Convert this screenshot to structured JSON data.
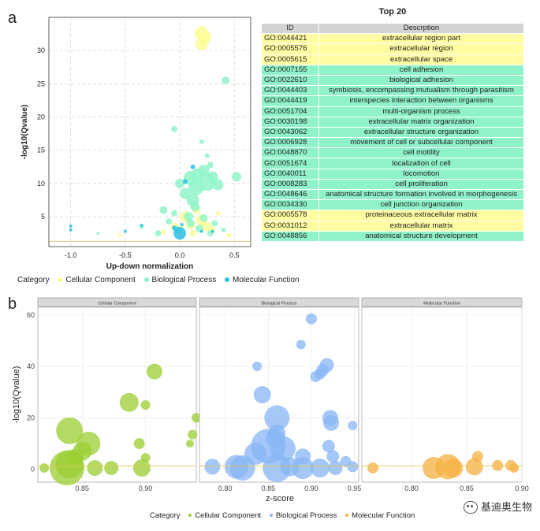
{
  "panel_a_label": "a",
  "panel_b_label": "b",
  "watermark_text": "基迪奥生物",
  "colors": {
    "cellular_component_a": "#fdfd96",
    "biological_process_a": "#90f5c9",
    "molecular_function_a": "#2cc0e8",
    "cellular_component_b": "#9acd32",
    "biological_process_b": "#87b5f5",
    "molecular_function_b": "#f5b041",
    "table_cc_row": "#fffca2",
    "table_bp_row": "#8ff2c8"
  },
  "table": {
    "title": "Top 20",
    "headers": [
      "ID",
      "Descrption"
    ],
    "rows": [
      {
        "id": "GO:0044421",
        "desc": "extracellular region part",
        "cat": "cc"
      },
      {
        "id": "GO:0005576",
        "desc": "extracellular region",
        "cat": "cc"
      },
      {
        "id": "GO:0005615",
        "desc": "extracellular space",
        "cat": "cc"
      },
      {
        "id": "GO:0007155",
        "desc": "cell adhesion",
        "cat": "bp"
      },
      {
        "id": "GO:0022610",
        "desc": "biological adhesion",
        "cat": "bp"
      },
      {
        "id": "GO:0044403",
        "desc": "symbiosis, encompassing mutualism through parasitism",
        "cat": "bp"
      },
      {
        "id": "GO:0044419",
        "desc": "interspecies interaction between organisms",
        "cat": "bp"
      },
      {
        "id": "GO:0051704",
        "desc": "multi-organism process",
        "cat": "bp"
      },
      {
        "id": "GO:0030198",
        "desc": "extracellular matrix organization",
        "cat": "bp"
      },
      {
        "id": "GO:0043062",
        "desc": "extracellular structure organization",
        "cat": "bp"
      },
      {
        "id": "GO:0006928",
        "desc": "movement of cell or subcellular component",
        "cat": "bp"
      },
      {
        "id": "GO:0048870",
        "desc": "cell motility",
        "cat": "bp"
      },
      {
        "id": "GO:0051674",
        "desc": "localization of cell",
        "cat": "bp"
      },
      {
        "id": "GO:0040011",
        "desc": "locomotion",
        "cat": "bp"
      },
      {
        "id": "GO:0008283",
        "desc": "cell proliferation",
        "cat": "bp"
      },
      {
        "id": "GO:0048646",
        "desc": "anatomical structure formation involved in morphogenesis",
        "cat": "bp"
      },
      {
        "id": "GO:0034330",
        "desc": "cell junction organization",
        "cat": "bp"
      },
      {
        "id": "GO:0005578",
        "desc": "proteinaceous extracellular matrix",
        "cat": "cc"
      },
      {
        "id": "GO:0031012",
        "desc": "extracellular matrix",
        "cat": "cc"
      },
      {
        "id": "GO:0048856",
        "desc": "anatomical structure development",
        "cat": "bp"
      }
    ]
  },
  "legend_a": {
    "title": "Category",
    "items": [
      {
        "label": "Cellular Component",
        "color_key": "cellular_component_a"
      },
      {
        "label": "Biological Process",
        "color_key": "biological_process_a"
      },
      {
        "label": "Molecular Function",
        "color_key": "molecular_function_a"
      }
    ]
  },
  "legend_b": {
    "title": "Category",
    "items": [
      {
        "label": "Cellular Component",
        "color_key": "cellular_component_b"
      },
      {
        "label": "Biological Process",
        "color_key": "biological_process_b"
      },
      {
        "label": "Molecular Function",
        "color_key": "molecular_function_b"
      }
    ]
  },
  "chart_data": [
    {
      "type": "scatter",
      "panel": "a",
      "xlabel": "Up-down normalization",
      "ylabel": "-log10(Qvalue)",
      "xlim": [
        -1.2,
        0.65
      ],
      "ylim": [
        0.5,
        35
      ],
      "xticks": [
        -1.0,
        -0.5,
        0.0,
        0.5
      ],
      "xtick_labels": [
        "-1.0",
        "-0.5",
        "0.0",
        "0.5"
      ],
      "yticks": [
        5,
        10,
        15,
        20,
        25,
        30
      ],
      "ytick_labels": [
        "5",
        "10",
        "15",
        "20",
        "25",
        "30"
      ],
      "hline": 1.3,
      "grid": true,
      "series": [
        {
          "name": "Cellular Component",
          "color_key": "cellular_component_a",
          "points": [
            {
              "x": 0.2,
              "y": 32.6,
              "s": 9
            },
            {
              "x": 0.23,
              "y": 32.0,
              "s": 8
            },
            {
              "x": 0.2,
              "y": 31.0,
              "s": 8
            },
            {
              "x": 0.15,
              "y": 6.0,
              "s": 5
            },
            {
              "x": 0.05,
              "y": 5.0,
              "s": 7
            },
            {
              "x": 0.2,
              "y": 4.5,
              "s": 7
            },
            {
              "x": 0.1,
              "y": 3.8,
              "s": 6
            },
            {
              "x": 0.25,
              "y": 3.5,
              "s": 6
            },
            {
              "x": -0.05,
              "y": 3.5,
              "s": 5
            },
            {
              "x": 0.0,
              "y": 3.0,
              "s": 6
            },
            {
              "x": 0.3,
              "y": 3.0,
              "s": 4
            },
            {
              "x": -0.15,
              "y": 2.7,
              "s": 3
            },
            {
              "x": 0.12,
              "y": 2.5,
              "s": 4
            },
            {
              "x": 0.45,
              "y": 2.2,
              "s": 3
            },
            {
              "x": -0.55,
              "y": 2.3,
              "s": 2
            },
            {
              "x": 0.35,
              "y": 5.5,
              "s": 3
            }
          ]
        },
        {
          "name": "Biological Process",
          "color_key": "biological_process_a",
          "points": [
            {
              "x": 0.42,
              "y": 25.5,
              "s": 5
            },
            {
              "x": -0.05,
              "y": 18.2,
              "s": 4
            },
            {
              "x": 0.2,
              "y": 16.3,
              "s": 3
            },
            {
              "x": 0.25,
              "y": 14.2,
              "s": 3
            },
            {
              "x": 0.28,
              "y": 12.8,
              "s": 4
            },
            {
              "x": 0.22,
              "y": 12.0,
              "s": 7
            },
            {
              "x": 0.16,
              "y": 11.3,
              "s": 8
            },
            {
              "x": 0.3,
              "y": 11.0,
              "s": 7
            },
            {
              "x": 0.52,
              "y": 11.0,
              "s": 6
            },
            {
              "x": 0.1,
              "y": 10.8,
              "s": 9
            },
            {
              "x": 0.25,
              "y": 10.2,
              "s": 11
            },
            {
              "x": 0.0,
              "y": 10.0,
              "s": 6
            },
            {
              "x": 0.35,
              "y": 9.8,
              "s": 7
            },
            {
              "x": 0.15,
              "y": 9.4,
              "s": 10
            },
            {
              "x": 0.05,
              "y": 8.5,
              "s": 7
            },
            {
              "x": 0.12,
              "y": 7.5,
              "s": 8
            },
            {
              "x": 0.14,
              "y": 6.5,
              "s": 6
            },
            {
              "x": -0.15,
              "y": 6.0,
              "s": 5
            },
            {
              "x": -0.05,
              "y": 5.5,
              "s": 4
            },
            {
              "x": 0.08,
              "y": 5.0,
              "s": 6
            },
            {
              "x": 0.22,
              "y": 4.8,
              "s": 5
            },
            {
              "x": -0.1,
              "y": 4.3,
              "s": 4
            },
            {
              "x": 0.1,
              "y": 4.0,
              "s": 5
            },
            {
              "x": 0.32,
              "y": 4.0,
              "s": 4
            },
            {
              "x": -0.02,
              "y": 3.0,
              "s": 5
            },
            {
              "x": 0.18,
              "y": 3.2,
              "s": 5
            },
            {
              "x": -0.2,
              "y": 2.5,
              "s": 4
            },
            {
              "x": 0.28,
              "y": 2.5,
              "s": 4
            },
            {
              "x": -0.35,
              "y": 3.5,
              "s": 3
            },
            {
              "x": -0.75,
              "y": 2.5,
              "s": 2
            },
            {
              "x": 0.4,
              "y": 3.0,
              "s": 3
            }
          ]
        },
        {
          "name": "Molecular Function",
          "color_key": "molecular_function_a",
          "points": [
            {
              "x": 0.12,
              "y": 12.5,
              "s": 3
            },
            {
              "x": 0.05,
              "y": 10.3,
              "s": 3
            },
            {
              "x": 0.0,
              "y": 2.5,
              "s": 8
            },
            {
              "x": -0.05,
              "y": 3.3,
              "s": 3
            },
            {
              "x": 0.02,
              "y": 3.8,
              "s": 2
            },
            {
              "x": -0.35,
              "y": 3.7,
              "s": 2
            },
            {
              "x": -1.0,
              "y": 3.6,
              "s": 2
            },
            {
              "x": -1.0,
              "y": 3.0,
              "s": 2
            },
            {
              "x": -0.5,
              "y": 2.8,
              "s": 2
            },
            {
              "x": 0.3,
              "y": 2.8,
              "s": 2
            },
            {
              "x": 0.2,
              "y": 2.8,
              "s": 2
            }
          ]
        }
      ]
    },
    {
      "type": "scatter",
      "panel": "b",
      "facets": [
        "Cellular Component",
        "Biological Process",
        "Molecular Function"
      ],
      "xlabel": "z-score",
      "ylabel": "-log10(Qvalue)",
      "ylim": [
        -5,
        63
      ],
      "yticks": [
        0,
        20,
        40,
        60
      ],
      "ytick_labels": [
        "0",
        "20",
        "40",
        "60"
      ],
      "hline": 1.3,
      "grid": true,
      "facet_data": [
        {
          "name": "Cellular Component",
          "color_key": "cellular_component_b",
          "xlim": [
            0.815,
            0.94
          ],
          "xticks": [
            0.85,
            0.9
          ],
          "xtick_labels": [
            "0.85",
            "0.90"
          ],
          "points": [
            {
              "x": 0.907,
              "y": 38,
              "s": 10
            },
            {
              "x": 0.887,
              "y": 26,
              "s": 12
            },
            {
              "x": 0.9,
              "y": 25,
              "s": 6
            },
            {
              "x": 0.94,
              "y": 20,
              "s": 6
            },
            {
              "x": 0.84,
              "y": 15,
              "s": 17
            },
            {
              "x": 0.855,
              "y": 10,
              "s": 15
            },
            {
              "x": 0.85,
              "y": 7,
              "s": 12
            },
            {
              "x": 0.895,
              "y": 10,
              "s": 7
            },
            {
              "x": 0.937,
              "y": 13.5,
              "s": 6
            },
            {
              "x": 0.935,
              "y": 10,
              "s": 5
            },
            {
              "x": 0.845,
              "y": 5,
              "s": 10
            },
            {
              "x": 0.9,
              "y": 4.5,
              "s": 6
            },
            {
              "x": 0.84,
              "y": 2,
              "s": 18
            },
            {
              "x": 0.838,
              "y": 0.5,
              "s": 22
            },
            {
              "x": 0.873,
              "y": 0.5,
              "s": 9
            },
            {
              "x": 0.897,
              "y": 0.5,
              "s": 11
            },
            {
              "x": 0.82,
              "y": 0.5,
              "s": 6
            },
            {
              "x": 0.86,
              "y": 0.5,
              "s": 10
            }
          ]
        },
        {
          "name": "Biological Process",
          "color_key": "biological_process_b",
          "xlim": [
            0.77,
            0.955
          ],
          "xticks": [
            0.8,
            0.85,
            0.9,
            0.95
          ],
          "xtick_labels": [
            "0.80",
            "0.85",
            "0.90",
            "0.95"
          ],
          "points": [
            {
              "x": 0.9,
              "y": 58.5,
              "s": 7
            },
            {
              "x": 0.888,
              "y": 48.5,
              "s": 6
            },
            {
              "x": 0.837,
              "y": 40,
              "s": 6
            },
            {
              "x": 0.918,
              "y": 40.5,
              "s": 9
            },
            {
              "x": 0.913,
              "y": 38.5,
              "s": 8
            },
            {
              "x": 0.91,
              "y": 37,
              "s": 7
            },
            {
              "x": 0.905,
              "y": 36,
              "s": 7
            },
            {
              "x": 0.843,
              "y": 29,
              "s": 11
            },
            {
              "x": 0.922,
              "y": 20,
              "s": 10
            },
            {
              "x": 0.86,
              "y": 20,
              "s": 16
            },
            {
              "x": 0.923,
              "y": 18,
              "s": 10
            },
            {
              "x": 0.948,
              "y": 17,
              "s": 6
            },
            {
              "x": 0.86,
              "y": 14,
              "s": 11
            },
            {
              "x": 0.858,
              "y": 12,
              "s": 12
            },
            {
              "x": 0.92,
              "y": 9,
              "s": 8
            },
            {
              "x": 0.85,
              "y": 9,
              "s": 22
            },
            {
              "x": 0.867,
              "y": 8,
              "s": 16
            },
            {
              "x": 0.835,
              "y": 6,
              "s": 14
            },
            {
              "x": 0.89,
              "y": 5,
              "s": 10
            },
            {
              "x": 0.925,
              "y": 5,
              "s": 8
            },
            {
              "x": 0.94,
              "y": 3,
              "s": 7
            },
            {
              "x": 0.813,
              "y": 1,
              "s": 15
            },
            {
              "x": 0.82,
              "y": 0.5,
              "s": 16
            },
            {
              "x": 0.86,
              "y": 0.5,
              "s": 18
            },
            {
              "x": 0.89,
              "y": 0.5,
              "s": 14
            },
            {
              "x": 0.91,
              "y": 0.5,
              "s": 12
            },
            {
              "x": 0.928,
              "y": 0.5,
              "s": 9
            },
            {
              "x": 0.948,
              "y": 1,
              "s": 7
            },
            {
              "x": 0.785,
              "y": 1,
              "s": 10
            },
            {
              "x": 0.875,
              "y": 1,
              "s": 12
            }
          ]
        },
        {
          "name": "Molecular Function",
          "color_key": "molecular_function_b",
          "xlim": [
            0.755,
            0.9
          ],
          "xticks": [
            0.8,
            0.85,
            0.9
          ],
          "xtick_labels": [
            "0.80",
            "0.85",
            "0.90"
          ],
          "points": [
            {
              "x": 0.765,
              "y": 0.5,
              "s": 7
            },
            {
              "x": 0.82,
              "y": 0.5,
              "s": 14
            },
            {
              "x": 0.833,
              "y": 1,
              "s": 16
            },
            {
              "x": 0.838,
              "y": 0.5,
              "s": 12
            },
            {
              "x": 0.857,
              "y": 1,
              "s": 11
            },
            {
              "x": 0.86,
              "y": 5,
              "s": 7
            },
            {
              "x": 0.878,
              "y": 1.5,
              "s": 7
            },
            {
              "x": 0.89,
              "y": 1.5,
              "s": 7
            },
            {
              "x": 0.893,
              "y": 0.5,
              "s": 6
            }
          ]
        }
      ]
    }
  ]
}
